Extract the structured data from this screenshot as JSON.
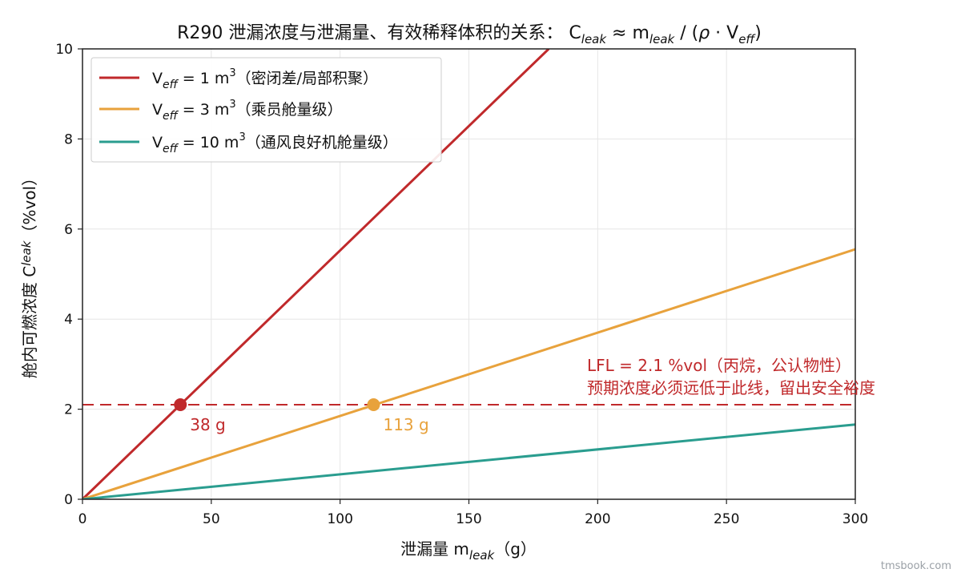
{
  "chart_data": {
    "type": "line",
    "title": {
      "prefix": "R290 泄漏浓度与泄漏量、有效稀释体积的关系：  C",
      "sub1": "leak",
      "mid1": " ≈ m",
      "sub2": "leak",
      "mid2": " / (",
      "rho": "ρ",
      "mid3": " · V",
      "sub3": "eff",
      "suffix": ")"
    },
    "xlabel": {
      "main": "泄漏量 m",
      "sub": "leak",
      "unit": "（g）"
    },
    "ylabel": {
      "main": "舱内可燃浓度 C",
      "sub": "leak",
      "unit": "（%vol）"
    },
    "xlim": [
      0,
      300
    ],
    "ylim": [
      0,
      10
    ],
    "xticks": [
      "0",
      "50",
      "100",
      "150",
      "200",
      "250",
      "300"
    ],
    "yticks": [
      "0",
      "2",
      "4",
      "6",
      "8",
      "10"
    ],
    "grid": true,
    "legend_position": "top-left",
    "series": [
      {
        "name_main": "V",
        "name_sub": "eff",
        "name_rest": " = 1 m",
        "name_sup": "3",
        "name_note": "（密闭差/局部积聚）",
        "color": "#c0292b",
        "x": [
          0,
          181
        ],
        "y": [
          0,
          10
        ]
      },
      {
        "name_main": "V",
        "name_sub": "eff",
        "name_rest": " = 3 m",
        "name_sup": "3",
        "name_note": "（乘员舱量级）",
        "color": "#e8a23c",
        "x": [
          0,
          300
        ],
        "y": [
          0,
          5.55
        ]
      },
      {
        "name_main": "V",
        "name_sub": "eff",
        "name_rest": " = 10 m",
        "name_sup": "3",
        "name_note": "（通风良好机舱量级）",
        "color": "#2a9d8f",
        "x": [
          0,
          300
        ],
        "y": [
          0,
          1.66
        ]
      }
    ],
    "reference_line": {
      "y": 2.1,
      "color": "#c0292b",
      "label_line1": "LFL = 2.1 %vol（丙烷，公认物性）",
      "label_line2": "预期浓度必须远低于此线，留出安全裕度"
    },
    "markers": [
      {
        "x": 38,
        "y": 2.1,
        "label": "38 g",
        "color": "#c0292b"
      },
      {
        "x": 113,
        "y": 2.1,
        "label": "113 g",
        "color": "#e8a23c"
      }
    ]
  },
  "watermark": "tmsbook.com"
}
